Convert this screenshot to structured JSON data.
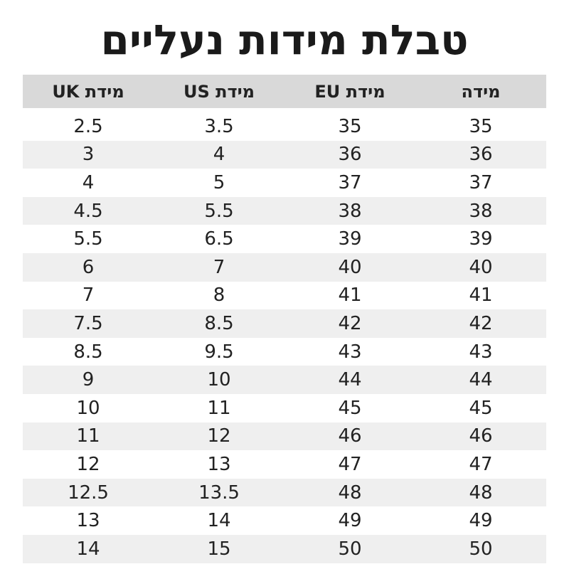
{
  "title": "טבלת מידות נעליים",
  "table": {
    "header": [
      "מידה",
      "מידת EU",
      "מידת US",
      "מידת UK"
    ],
    "rows": [
      [
        "35",
        "35",
        "3.5",
        "2.5"
      ],
      [
        "36",
        "36",
        "4",
        "3"
      ],
      [
        "37",
        "37",
        "5",
        "4"
      ],
      [
        "38",
        "38",
        "5.5",
        "4.5"
      ],
      [
        "39",
        "39",
        "6.5",
        "5.5"
      ],
      [
        "40",
        "40",
        "7",
        "6"
      ],
      [
        "41",
        "41",
        "8",
        "7"
      ],
      [
        "42",
        "42",
        "8.5",
        "7.5"
      ],
      [
        "43",
        "43",
        "9.5",
        "8.5"
      ],
      [
        "44",
        "44",
        "10",
        "9"
      ],
      [
        "45",
        "45",
        "11",
        "10"
      ],
      [
        "46",
        "46",
        "12",
        "11"
      ],
      [
        "47",
        "47",
        "13",
        "12"
      ],
      [
        "48",
        "48",
        "13.5",
        "12.5"
      ],
      [
        "49",
        "49",
        "14",
        "13"
      ],
      [
        "50",
        "50",
        "15",
        "14"
      ]
    ]
  }
}
